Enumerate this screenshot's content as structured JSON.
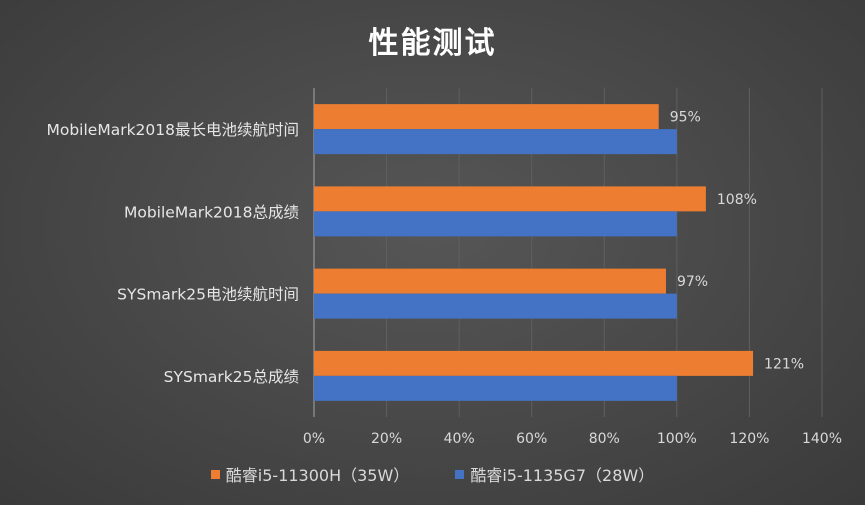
{
  "chart_data": {
    "type": "bar",
    "orientation": "horizontal",
    "title": "性能测试",
    "categories": [
      "MobileMark2018最长电池续航时间",
      "MobileMark2018总成绩",
      "SYSmark25电池续航时间",
      "SYSmark25总成绩"
    ],
    "series": [
      {
        "name": "酷睿i5-11300H（35W）",
        "color": "#ed7d31",
        "values": [
          95,
          108,
          97,
          121
        ],
        "labels": [
          "95%",
          "108%",
          "97%",
          "121%"
        ]
      },
      {
        "name": "酷睿i5-1135G7（28W）",
        "color": "#4472c4",
        "values": [
          100,
          100,
          100,
          100
        ]
      }
    ],
    "xlim": [
      0,
      140
    ],
    "x_ticks": [
      "0%",
      "20%",
      "40%",
      "60%",
      "80%",
      "100%",
      "120%",
      "140%"
    ],
    "grid": true,
    "legend_position": "bottom"
  }
}
